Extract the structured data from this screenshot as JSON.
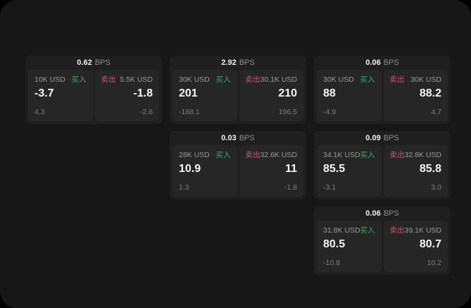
{
  "labels": {
    "buy_side": "买入",
    "sell_side": "卖出",
    "bps_unit": "BPS"
  },
  "colors": {
    "buy": "#43a85f",
    "sell": "#c45666",
    "value_text": "#f5f5f5",
    "screen_bg": "#171717",
    "card_bg": "#1f1f1f",
    "panel_bg": "#262626"
  },
  "cards": [
    {
      "bps": "0.62",
      "grid": {
        "row": 1,
        "col": 1
      },
      "buy": {
        "amount": "10K USD",
        "value": "-3.7",
        "sub": "4.3"
      },
      "sell": {
        "amount": "5.5K USD",
        "value": "-1.8",
        "sub": "-2.6"
      }
    },
    {
      "bps": "2.92",
      "grid": {
        "row": 1,
        "col": 2
      },
      "buy": {
        "amount": "30K USD",
        "value": "201",
        "sub": "-188.1"
      },
      "sell": {
        "amount": "30.1K USD",
        "value": "210",
        "sub": "196.5"
      }
    },
    {
      "bps": "0.06",
      "grid": {
        "row": 1,
        "col": 3
      },
      "buy": {
        "amount": "30K USD",
        "value": "88",
        "sub": "-4.9"
      },
      "sell": {
        "amount": "30K USD",
        "value": "88.2",
        "sub": "4.7"
      }
    },
    {
      "bps": "0.03",
      "grid": {
        "row": 2,
        "col": 2
      },
      "buy": {
        "amount": "28K USD",
        "value": "10.9",
        "sub": "1.3"
      },
      "sell": {
        "amount": "32.6K USD",
        "value": "11",
        "sub": "-1.8"
      }
    },
    {
      "bps": "0.09",
      "grid": {
        "row": 2,
        "col": 3
      },
      "buy": {
        "amount": "34.1K USD",
        "value": "85.5",
        "sub": "-3.1"
      },
      "sell": {
        "amount": "32.8K USD",
        "value": "85.8",
        "sub": "3.0"
      }
    },
    {
      "bps": "0.06",
      "grid": {
        "row": 3,
        "col": 3
      },
      "buy": {
        "amount": "31.8K USD",
        "value": "80.5",
        "sub": "-10.8"
      },
      "sell": {
        "amount": "39.1K USD",
        "value": "80.7",
        "sub": "10.2"
      }
    }
  ]
}
